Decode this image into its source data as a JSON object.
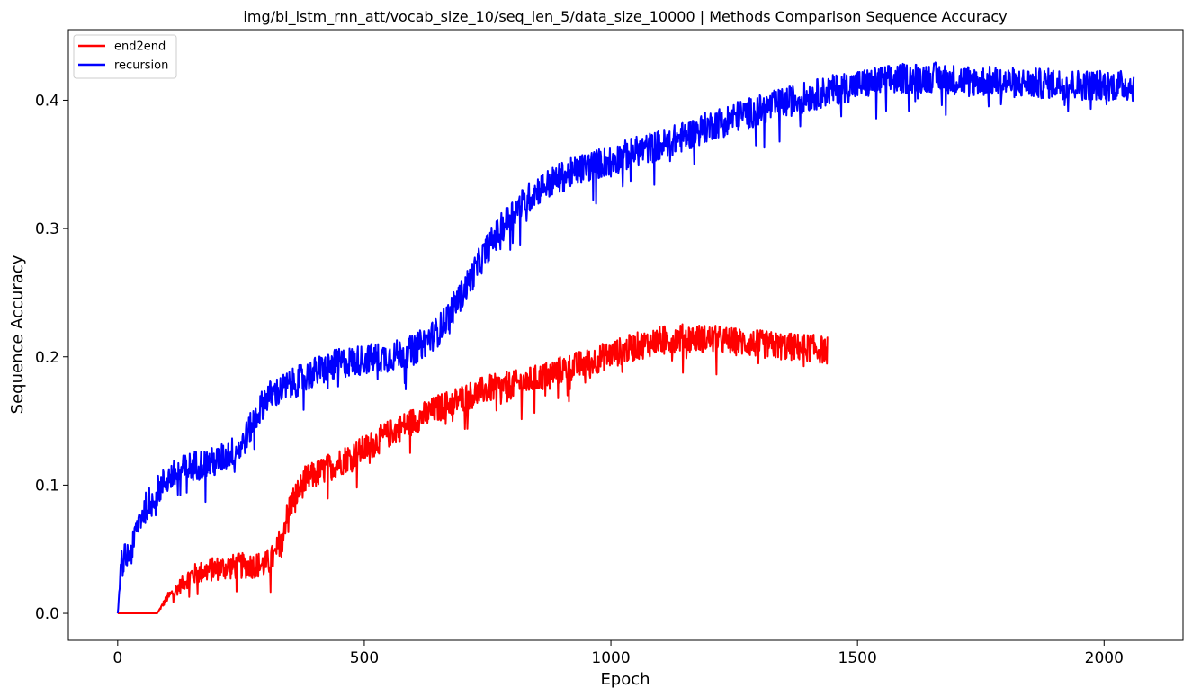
{
  "chart_data": {
    "type": "line",
    "title": "img/bi_lstm_rnn_att/vocab_size_10/seq_len_5/data_size_10000 | Methods Comparison Sequence Accuracy",
    "xlabel": "Epoch",
    "ylabel": "Sequence Accuracy",
    "xlim": [
      -100,
      2160
    ],
    "ylim": [
      -0.021,
      0.455
    ],
    "xticks": [
      0,
      500,
      1000,
      1500,
      2000
    ],
    "xtick_labels": [
      "0",
      "500",
      "1000",
      "1500",
      "2000"
    ],
    "yticks": [
      0.0,
      0.1,
      0.2,
      0.3,
      0.4
    ],
    "ytick_labels": [
      "0.0",
      "0.1",
      "0.2",
      "0.3",
      "0.4"
    ],
    "grid": false,
    "legend_position": "top-left",
    "series": [
      {
        "name": "end2end",
        "color": "#ff0000",
        "noise": 0.011,
        "x": [
          0,
          80,
          100,
          150,
          200,
          250,
          300,
          320,
          350,
          380,
          400,
          450,
          500,
          550,
          600,
          650,
          700,
          750,
          800,
          850,
          900,
          950,
          1000,
          1050,
          1100,
          1150,
          1200,
          1250,
          1300,
          1350,
          1400,
          1440
        ],
        "y": [
          0.0,
          0.0,
          0.012,
          0.03,
          0.035,
          0.037,
          0.038,
          0.045,
          0.085,
          0.104,
          0.108,
          0.118,
          0.128,
          0.14,
          0.15,
          0.16,
          0.168,
          0.175,
          0.178,
          0.183,
          0.19,
          0.195,
          0.202,
          0.208,
          0.213,
          0.215,
          0.214,
          0.212,
          0.21,
          0.208,
          0.207,
          0.205
        ]
      },
      {
        "name": "recursion",
        "color": "#0000ff",
        "noise": 0.012,
        "x": [
          0,
          8,
          20,
          30,
          40,
          60,
          100,
          150,
          200,
          250,
          300,
          350,
          400,
          450,
          500,
          550,
          600,
          650,
          700,
          750,
          800,
          850,
          900,
          950,
          1000,
          1050,
          1100,
          1150,
          1200,
          1250,
          1300,
          1350,
          1400,
          1450,
          1500,
          1550,
          1600,
          1650,
          1700,
          1750,
          1800,
          1850,
          1900,
          1950,
          2000,
          2060
        ],
        "y": [
          0.0,
          0.04,
          0.045,
          0.05,
          0.07,
          0.085,
          0.105,
          0.115,
          0.118,
          0.13,
          0.168,
          0.178,
          0.188,
          0.195,
          0.198,
          0.2,
          0.205,
          0.22,
          0.25,
          0.285,
          0.312,
          0.33,
          0.34,
          0.348,
          0.353,
          0.36,
          0.365,
          0.372,
          0.38,
          0.387,
          0.392,
          0.398,
          0.403,
          0.408,
          0.412,
          0.415,
          0.417,
          0.418,
          0.416,
          0.415,
          0.414,
          0.413,
          0.413,
          0.412,
          0.412,
          0.411
        ]
      }
    ]
  }
}
